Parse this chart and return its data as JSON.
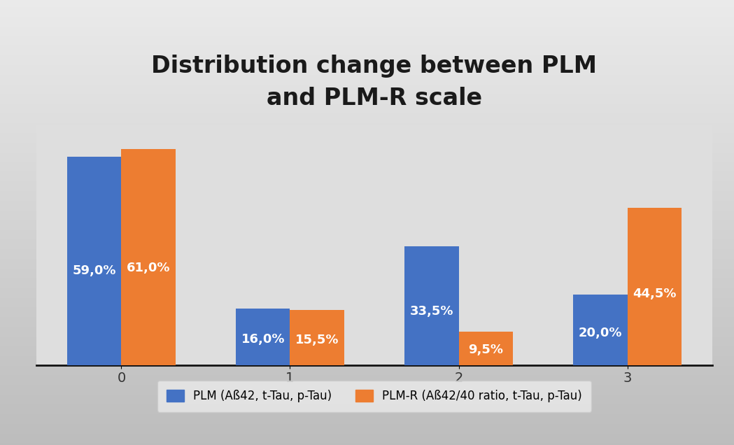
{
  "title": "Distribution change between PLM\nand PLM-R scale",
  "categories": [
    "0",
    "1",
    "2",
    "3"
  ],
  "plm_values": [
    59.0,
    16.0,
    33.5,
    20.0
  ],
  "plmr_values": [
    61.0,
    15.5,
    9.5,
    44.5
  ],
  "plm_color": "#4472C4",
  "plmr_color": "#ED7D31",
  "plm_label": "PLM (Aß42, t-Tau, p-Tau)",
  "plmr_label": "PLM-R (Aß42/40 ratio, t-Tau, p-Tau)",
  "bar_width": 0.32,
  "ylim": [
    0,
    68
  ],
  "background_top": "#C8C8C8",
  "background_mid": "#E8E8E8",
  "background_bot": "#B0B0B0",
  "grid_color": "#AAAAAA",
  "title_fontsize": 24,
  "label_fontsize": 13,
  "tick_fontsize": 14,
  "legend_fontsize": 12
}
